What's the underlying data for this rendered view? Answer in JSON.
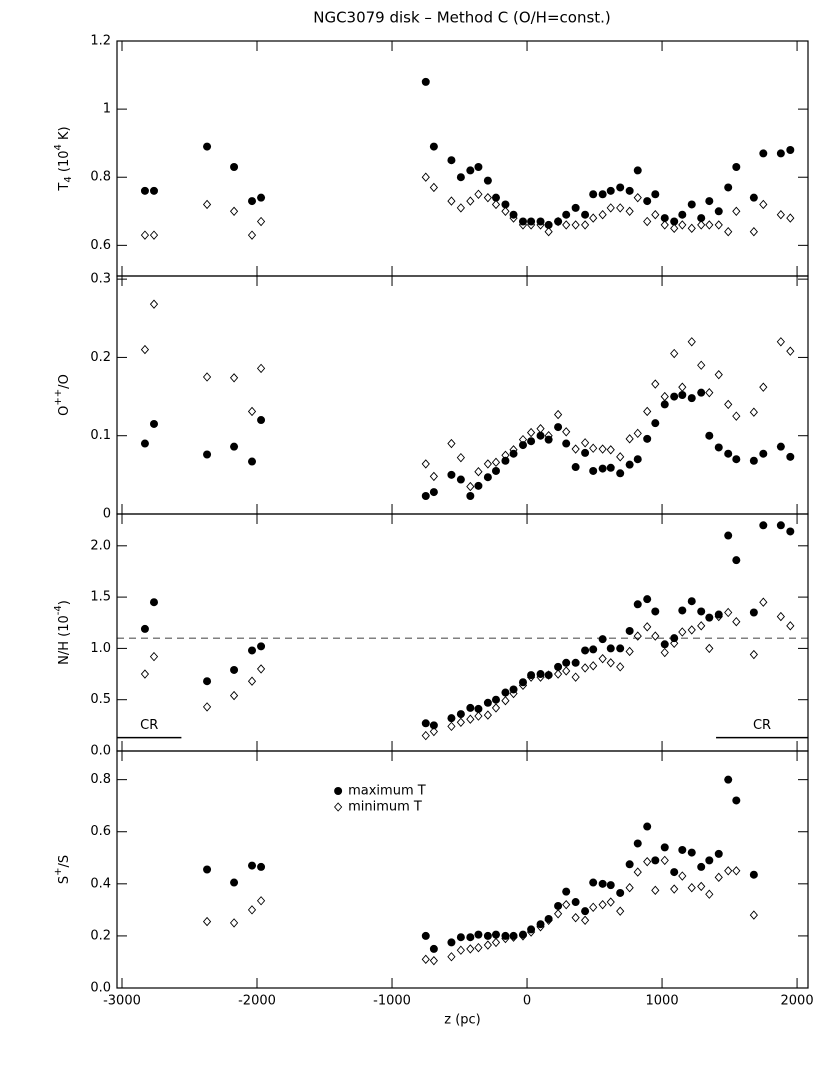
{
  "chart_data": [
    {
      "type": "scatter",
      "title": "NGC3079 disk  –  Method C (O/H=const.)",
      "ylabel": [
        {
          "text": "T"
        },
        {
          "text": "4",
          "sub": true
        },
        {
          "text": " (10"
        },
        {
          "text": "4",
          "sup": true
        },
        {
          "text": " K)"
        }
      ],
      "x": [
        -2830,
        -2763,
        -2370,
        -2170,
        -2037,
        -1970,
        -750,
        -690,
        -560,
        -490,
        -420,
        -360,
        -290,
        -230,
        -160,
        -100,
        -30,
        30,
        100,
        160,
        230,
        290,
        360,
        430,
        490,
        560,
        620,
        690,
        760,
        820,
        890,
        950,
        1020,
        1090,
        1150,
        1220,
        1290,
        1350,
        1420,
        1490,
        1550,
        1680,
        1750,
        1880,
        1950
      ],
      "series": [
        {
          "marker": "circle",
          "color": "#000000",
          "values": [
            0.76,
            0.76,
            0.89,
            0.83,
            0.73,
            0.74,
            1.08,
            0.89,
            0.85,
            0.8,
            0.82,
            0.83,
            0.79,
            0.74,
            0.72,
            0.69,
            0.67,
            0.67,
            0.67,
            0.66,
            0.67,
            0.69,
            0.71,
            0.69,
            0.75,
            0.75,
            0.76,
            0.77,
            0.76,
            0.82,
            0.73,
            0.75,
            0.68,
            0.67,
            0.69,
            0.72,
            0.68,
            0.73,
            0.7,
            0.77,
            0.83,
            0.74,
            0.87,
            0.87,
            0.88
          ]
        },
        {
          "marker": "diamond",
          "color": "#000000",
          "values": [
            0.63,
            0.63,
            0.72,
            0.7,
            0.63,
            0.67,
            0.8,
            0.77,
            0.73,
            0.71,
            0.73,
            0.75,
            0.74,
            0.72,
            0.7,
            0.68,
            0.66,
            0.66,
            0.66,
            0.64,
            0.67,
            0.66,
            0.66,
            0.66,
            0.68,
            0.69,
            0.71,
            0.71,
            0.7,
            0.74,
            0.67,
            0.69,
            0.66,
            0.65,
            0.66,
            0.65,
            0.66,
            0.66,
            0.66,
            0.64,
            0.7,
            0.64,
            0.72,
            0.69,
            0.68
          ]
        }
      ],
      "xlim": [
        -3037,
        2081
      ],
      "xticks": [
        -3000,
        -2000,
        -1000,
        0,
        1000,
        2000
      ],
      "ylim": [
        0.51,
        1.2
      ],
      "yticks": [
        0.6,
        0.8,
        1,
        1.2
      ]
    },
    {
      "type": "scatter",
      "ylabel": [
        {
          "text": "O"
        },
        {
          "text": "++",
          "sup": true
        },
        {
          "text": "/O"
        }
      ],
      "x": [
        -2830,
        -2763,
        -2370,
        -2170,
        -2037,
        -1970,
        -750,
        -690,
        -560,
        -490,
        -420,
        -360,
        -290,
        -230,
        -160,
        -100,
        -30,
        30,
        100,
        160,
        230,
        290,
        360,
        430,
        490,
        560,
        620,
        690,
        760,
        820,
        890,
        950,
        1020,
        1090,
        1150,
        1220,
        1290,
        1350,
        1420,
        1490,
        1550,
        1680,
        1750,
        1880,
        1950
      ],
      "series": [
        {
          "marker": "circle",
          "color": "#000000",
          "values": [
            0.09,
            0.115,
            0.076,
            0.086,
            0.067,
            0.12,
            0.023,
            0.028,
            0.05,
            0.044,
            0.023,
            0.036,
            0.047,
            0.055,
            0.068,
            0.077,
            0.088,
            0.093,
            0.1,
            0.095,
            0.111,
            0.09,
            0.06,
            0.078,
            0.055,
            0.058,
            0.059,
            0.052,
            0.063,
            0.07,
            0.096,
            0.116,
            0.14,
            0.15,
            0.152,
            0.148,
            0.155,
            0.1,
            0.085,
            0.077,
            0.07,
            0.068,
            0.077,
            0.086,
            0.073
          ]
        },
        {
          "marker": "diamond",
          "color": "#000000",
          "values": [
            0.21,
            0.268,
            0.175,
            0.174,
            0.131,
            0.186,
            0.064,
            0.048,
            0.09,
            0.072,
            0.035,
            0.054,
            0.064,
            0.066,
            0.075,
            0.082,
            0.095,
            0.104,
            0.109,
            0.1,
            0.127,
            0.105,
            0.083,
            0.091,
            0.084,
            0.083,
            0.082,
            0.073,
            0.096,
            0.103,
            0.131,
            0.166,
            0.15,
            0.205,
            0.162,
            0.22,
            0.19,
            0.155,
            0.178,
            0.14,
            0.125,
            0.13,
            0.162,
            0.22,
            0.208
          ]
        }
      ],
      "xlim": [
        -3037,
        2081
      ],
      "xticks": [
        -3000,
        -2000,
        -1000,
        0,
        1000,
        2000
      ],
      "ylim": [
        0,
        0.304
      ],
      "yticks": [
        0,
        0.1,
        0.2,
        0.3
      ]
    },
    {
      "type": "scatter",
      "ylabel": [
        {
          "text": "N/H (10"
        },
        {
          "text": "-4",
          "sup": true
        },
        {
          "text": ")"
        }
      ],
      "x": [
        -2830,
        -2763,
        -2370,
        -2170,
        -2037,
        -1970,
        -750,
        -690,
        -560,
        -490,
        -420,
        -360,
        -290,
        -230,
        -160,
        -100,
        -30,
        30,
        100,
        160,
        230,
        290,
        360,
        430,
        490,
        560,
        620,
        690,
        760,
        820,
        890,
        950,
        1020,
        1090,
        1150,
        1220,
        1290,
        1350,
        1420,
        1490,
        1550,
        1680,
        1750,
        1880,
        1950
      ],
      "series": [
        {
          "marker": "circle",
          "color": "#000000",
          "values": [
            1.19,
            1.45,
            0.68,
            0.79,
            0.98,
            1.02,
            0.27,
            0.25,
            0.32,
            0.36,
            0.42,
            0.41,
            0.47,
            0.5,
            0.57,
            0.6,
            0.67,
            0.74,
            0.75,
            0.74,
            0.82,
            0.86,
            0.86,
            0.98,
            0.99,
            1.09,
            1.0,
            1.0,
            1.17,
            1.43,
            1.48,
            1.36,
            1.04,
            1.1,
            1.37,
            1.46,
            1.36,
            1.3,
            1.33,
            2.1,
            1.86,
            1.35,
            2.2,
            2.2,
            2.14
          ]
        },
        {
          "marker": "diamond",
          "color": "#000000",
          "values": [
            0.75,
            0.92,
            0.43,
            0.54,
            0.68,
            0.8,
            0.15,
            0.19,
            0.24,
            0.28,
            0.31,
            0.34,
            0.35,
            0.42,
            0.49,
            0.56,
            0.64,
            0.72,
            0.72,
            0.74,
            0.75,
            0.78,
            0.72,
            0.81,
            0.83,
            0.9,
            0.86,
            0.82,
            0.97,
            1.12,
            1.21,
            1.12,
            0.96,
            1.05,
            1.16,
            1.18,
            1.22,
            1.0,
            1.31,
            1.35,
            1.26,
            0.94,
            1.45,
            1.31,
            1.22
          ]
        }
      ],
      "hline": {
        "y": 1.1,
        "style": "dashed"
      },
      "annotations": [
        {
          "text": "CR",
          "x": [
            -3037,
            -2560
          ],
          "y": 0.13
        },
        {
          "text": "CR",
          "x": [
            1400,
            2081
          ],
          "y": 0.13
        }
      ],
      "xlim": [
        -3037,
        2081
      ],
      "xticks": [
        -3000,
        -2000,
        -1000,
        0,
        1000,
        2000
      ],
      "ylim": [
        0,
        2.31
      ],
      "yticks": [
        {
          "value": 0,
          "label": "0.0"
        },
        0.5,
        {
          "value": 1,
          "label": "1.0"
        },
        1.5,
        {
          "value": 2,
          "label": "2.0"
        }
      ]
    },
    {
      "type": "scatter",
      "ylabel": [
        {
          "text": "S"
        },
        {
          "text": "+",
          "sup": true
        },
        {
          "text": "/S"
        }
      ],
      "xlabel": "z (pc)",
      "legend": "upper center",
      "x": [
        -2830,
        -2763,
        -2370,
        -2170,
        -2037,
        -1970,
        -750,
        -690,
        -560,
        -490,
        -420,
        -360,
        -290,
        -230,
        -160,
        -100,
        -30,
        30,
        100,
        160,
        230,
        290,
        360,
        430,
        490,
        560,
        620,
        690,
        760,
        820,
        890,
        950,
        1020,
        1090,
        1150,
        1220,
        1290,
        1350,
        1420,
        1490,
        1550,
        1680,
        1750,
        1880,
        1950
      ],
      "series": [
        {
          "name": "maximum T",
          "marker": "circle",
          "color": "#000000",
          "values": [
            null,
            null,
            0.455,
            0.405,
            0.47,
            0.465,
            0.2,
            0.15,
            0.175,
            0.195,
            0.195,
            0.205,
            0.2,
            0.205,
            0.2,
            0.2,
            0.205,
            0.225,
            0.245,
            0.265,
            0.315,
            0.37,
            0.33,
            0.295,
            0.405,
            0.4,
            0.395,
            0.365,
            0.475,
            0.555,
            0.62,
            0.49,
            0.54,
            0.445,
            0.53,
            0.52,
            0.465,
            0.49,
            0.515,
            0.8,
            0.72,
            0.435,
            null,
            null,
            null
          ]
        },
        {
          "name": "minimum T",
          "marker": "diamond",
          "color": "#000000",
          "values": [
            null,
            null,
            0.255,
            0.25,
            0.3,
            0.335,
            0.11,
            0.105,
            0.12,
            0.145,
            0.15,
            0.155,
            0.165,
            0.175,
            0.19,
            0.195,
            0.2,
            0.215,
            0.235,
            0.26,
            0.285,
            0.32,
            0.27,
            0.26,
            0.31,
            0.32,
            0.33,
            0.295,
            0.385,
            0.445,
            0.485,
            0.375,
            0.49,
            0.38,
            0.43,
            0.385,
            0.39,
            0.36,
            0.425,
            0.45,
            0.45,
            0.28,
            null,
            null,
            null
          ]
        }
      ],
      "xlim": [
        -3037,
        2081
      ],
      "xticks": [
        -3000,
        -2000,
        -1000,
        0,
        1000,
        2000
      ],
      "ylim": [
        0,
        0.91
      ],
      "yticks": [
        {
          "value": 0,
          "label": "0.0"
        },
        0.2,
        0.4,
        0.6,
        0.8
      ]
    }
  ]
}
